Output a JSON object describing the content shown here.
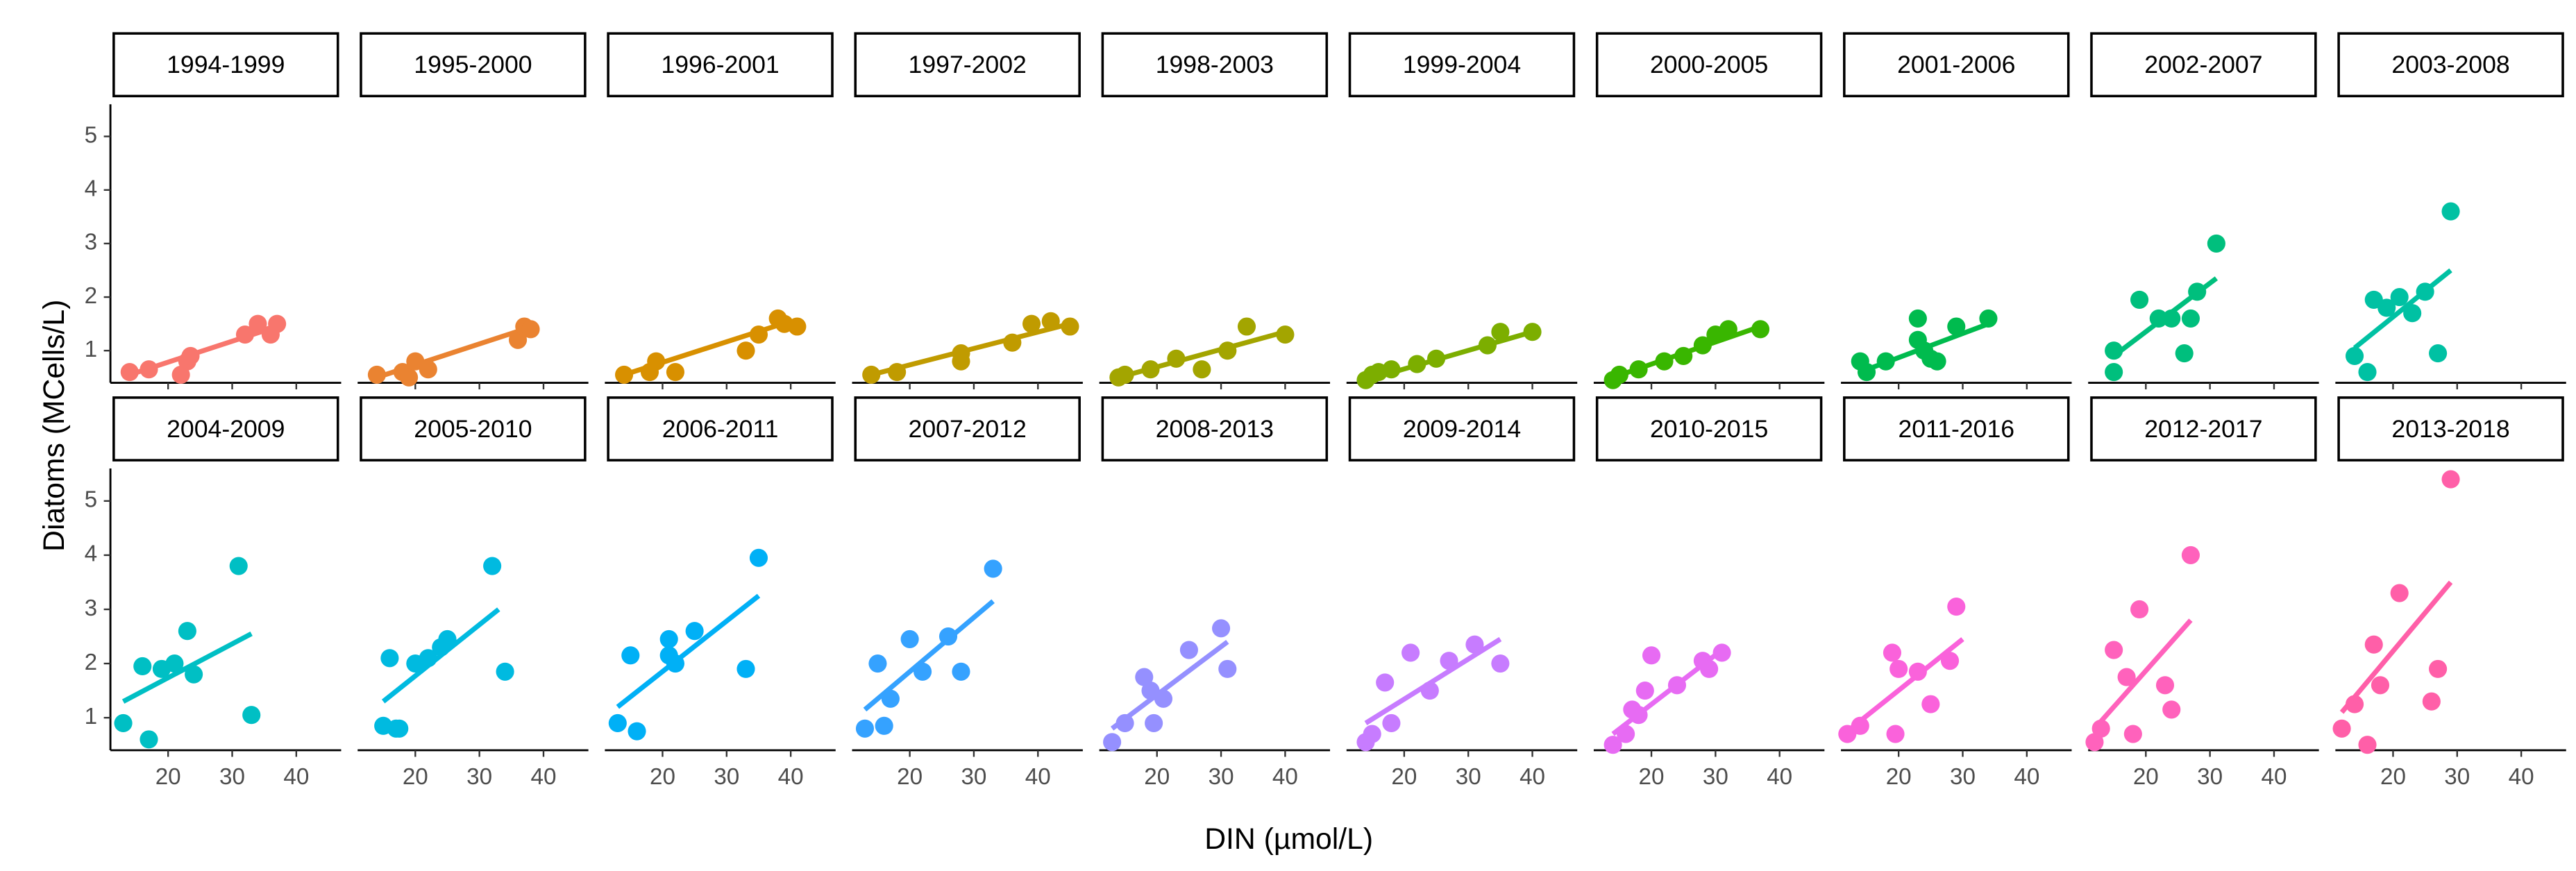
{
  "chart_data": {
    "type": "scatter",
    "x_label": "DIN (µmol/L)",
    "y_label": "Diatoms (MCells/L)",
    "xlim": [
      11,
      47
    ],
    "ylim": [
      0.4,
      5.6
    ],
    "xticks": [
      20,
      30,
      40
    ],
    "yticks": [
      1,
      2,
      3,
      4,
      5
    ],
    "panels": [
      {
        "title": "1994-1999",
        "color": "#F8766D",
        "x": [
          14,
          17,
          22,
          23,
          23.5,
          32,
          34,
          36,
          37
        ],
        "y": [
          0.6,
          0.65,
          0.55,
          0.8,
          0.9,
          1.3,
          1.5,
          1.3,
          1.5
        ],
        "fit_x": [
          14,
          37
        ],
        "fit_y": [
          0.55,
          1.45
        ]
      },
      {
        "title": "1995-2000",
        "color": "#EA8331",
        "x": [
          14,
          18,
          19,
          20,
          22,
          36,
          37,
          38
        ],
        "y": [
          0.55,
          0.6,
          0.5,
          0.8,
          0.65,
          1.2,
          1.45,
          1.4
        ],
        "fit_x": [
          14,
          37
        ],
        "fit_y": [
          0.5,
          1.4
        ]
      },
      {
        "title": "1996-2001",
        "color": "#D89000",
        "x": [
          14,
          18,
          19,
          22,
          33,
          35,
          38,
          39,
          41
        ],
        "y": [
          0.55,
          0.6,
          0.8,
          0.6,
          1.0,
          1.3,
          1.6,
          1.5,
          1.45
        ],
        "fit_x": [
          14,
          40
        ],
        "fit_y": [
          0.55,
          1.55
        ]
      },
      {
        "title": "1997-2002",
        "color": "#C09B00",
        "x": [
          14,
          18,
          28,
          28,
          36,
          39,
          42,
          45
        ],
        "y": [
          0.55,
          0.6,
          0.8,
          0.95,
          1.15,
          1.5,
          1.55,
          1.45
        ],
        "fit_x": [
          14,
          45
        ],
        "fit_y": [
          0.55,
          1.5
        ]
      },
      {
        "title": "1998-2003",
        "color": "#A3A500",
        "x": [
          14,
          15,
          19,
          23,
          27,
          31,
          34,
          40
        ],
        "y": [
          0.5,
          0.55,
          0.65,
          0.85,
          0.65,
          1.0,
          1.45,
          1.3
        ],
        "fit_x": [
          14,
          40
        ],
        "fit_y": [
          0.5,
          1.35
        ]
      },
      {
        "title": "1999-2004",
        "color": "#7CAE00",
        "x": [
          14,
          15,
          16,
          18,
          22,
          25,
          33,
          35,
          40
        ],
        "y": [
          0.45,
          0.55,
          0.6,
          0.65,
          0.75,
          0.85,
          1.1,
          1.35,
          1.35
        ],
        "fit_x": [
          14,
          40
        ],
        "fit_y": [
          0.45,
          1.35
        ]
      },
      {
        "title": "2000-2005",
        "color": "#39B600",
        "x": [
          14,
          15,
          18,
          22,
          25,
          28,
          30,
          32,
          37
        ],
        "y": [
          0.45,
          0.55,
          0.65,
          0.8,
          0.9,
          1.1,
          1.3,
          1.4,
          1.4
        ],
        "fit_x": [
          14,
          37
        ],
        "fit_y": [
          0.5,
          1.45
        ]
      },
      {
        "title": "2001-2006",
        "color": "#00BB4E",
        "x": [
          14,
          15,
          18,
          23,
          23,
          24,
          25,
          26,
          29,
          34
        ],
        "y": [
          0.8,
          0.6,
          0.8,
          1.6,
          1.2,
          1.0,
          0.85,
          0.8,
          1.45,
          1.6
        ],
        "fit_x": [
          14,
          34
        ],
        "fit_y": [
          0.6,
          1.5
        ]
      },
      {
        "title": "2002-2007",
        "color": "#00BF7D",
        "x": [
          15,
          15,
          19,
          22,
          24,
          26,
          27,
          28,
          31
        ],
        "y": [
          0.6,
          1.0,
          1.95,
          1.6,
          1.6,
          0.95,
          1.6,
          2.1,
          3.0
        ],
        "fit_x": [
          15,
          31
        ],
        "fit_y": [
          0.9,
          2.35
        ]
      },
      {
        "title": "2003-2008",
        "color": "#00C1A3",
        "x": [
          14,
          16,
          17,
          19,
          21,
          23,
          25,
          27,
          29
        ],
        "y": [
          0.9,
          0.6,
          1.95,
          1.8,
          2.0,
          1.7,
          2.1,
          0.95,
          3.6
        ],
        "fit_x": [
          14,
          29
        ],
        "fit_y": [
          1.05,
          2.5
        ]
      },
      {
        "title": "2004-2009",
        "color": "#00BFC4",
        "x": [
          13,
          16,
          17,
          19,
          21,
          23,
          24,
          31,
          33
        ],
        "y": [
          0.9,
          1.95,
          0.6,
          1.9,
          2.0,
          2.6,
          1.8,
          3.8,
          1.05
        ],
        "fit_x": [
          13,
          33
        ],
        "fit_y": [
          1.3,
          2.55
        ]
      },
      {
        "title": "2005-2010",
        "color": "#00BAE0",
        "x": [
          15,
          16,
          17,
          17.5,
          20,
          22,
          24,
          25,
          32,
          34
        ],
        "y": [
          0.85,
          2.1,
          0.8,
          0.8,
          2.0,
          2.1,
          2.3,
          2.45,
          3.8,
          1.85
        ],
        "fit_x": [
          15,
          33
        ],
        "fit_y": [
          1.3,
          3.0
        ]
      },
      {
        "title": "2006-2011",
        "color": "#00B0F6",
        "x": [
          13,
          15,
          16,
          21,
          21,
          22,
          25,
          33,
          35
        ],
        "y": [
          0.9,
          2.15,
          0.75,
          2.45,
          2.15,
          2.0,
          2.6,
          1.9,
          3.95
        ],
        "fit_x": [
          13,
          35
        ],
        "fit_y": [
          1.2,
          3.25
        ]
      },
      {
        "title": "2007-2012",
        "color": "#35A2FF",
        "x": [
          13,
          15,
          16,
          17,
          20,
          22,
          26,
          28,
          33
        ],
        "y": [
          0.8,
          2.0,
          0.85,
          1.35,
          2.45,
          1.85,
          2.5,
          1.85,
          3.75
        ],
        "fit_x": [
          13,
          33
        ],
        "fit_y": [
          1.15,
          3.15
        ]
      },
      {
        "title": "2008-2013",
        "color": "#9590FF",
        "x": [
          13,
          15,
          18,
          19,
          19.5,
          21,
          25,
          30,
          31
        ],
        "y": [
          0.55,
          0.9,
          1.75,
          1.5,
          0.9,
          1.35,
          2.25,
          2.65,
          1.9
        ],
        "fit_x": [
          13,
          31
        ],
        "fit_y": [
          0.8,
          2.4
        ]
      },
      {
        "title": "2009-2014",
        "color": "#C77CFF",
        "x": [
          14,
          15,
          17,
          18,
          21,
          24,
          27,
          31,
          35
        ],
        "y": [
          0.55,
          0.7,
          1.65,
          0.9,
          2.2,
          1.5,
          2.05,
          2.35,
          2.0
        ],
        "fit_x": [
          14,
          35
        ],
        "fit_y": [
          0.9,
          2.45
        ]
      },
      {
        "title": "2010-2015",
        "color": "#E76BF3",
        "x": [
          14,
          16,
          17,
          18,
          19,
          20,
          24,
          28,
          29,
          31
        ],
        "y": [
          0.5,
          0.7,
          1.15,
          1.05,
          1.5,
          2.15,
          1.6,
          2.05,
          1.9,
          2.2
        ],
        "fit_x": [
          14,
          31
        ],
        "fit_y": [
          0.7,
          2.25
        ]
      },
      {
        "title": "2011-2016",
        "color": "#FA62DB",
        "x": [
          12,
          14,
          19,
          19.5,
          20,
          23,
          25,
          28,
          29
        ],
        "y": [
          0.7,
          0.85,
          2.2,
          0.7,
          1.9,
          1.85,
          1.25,
          2.05,
          3.05
        ],
        "fit_x": [
          12,
          30
        ],
        "fit_y": [
          0.75,
          2.45
        ]
      },
      {
        "title": "2012-2017",
        "color": "#FF62BC",
        "x": [
          12,
          13,
          15,
          17,
          18,
          19,
          23,
          24,
          27
        ],
        "y": [
          0.55,
          0.8,
          2.25,
          1.75,
          0.7,
          3.0,
          1.6,
          1.15,
          4.0
        ],
        "fit_x": [
          12,
          27
        ],
        "fit_y": [
          0.8,
          2.8
        ]
      },
      {
        "title": "2013-2018",
        "color": "#FF5FA8",
        "x": [
          12,
          14,
          16,
          17,
          18,
          21,
          26,
          27,
          29
        ],
        "y": [
          0.8,
          1.25,
          0.5,
          2.35,
          1.6,
          3.3,
          1.3,
          1.9,
          5.4
        ],
        "fit_x": [
          12,
          29
        ],
        "fit_y": [
          1.1,
          3.5
        ]
      }
    ]
  }
}
